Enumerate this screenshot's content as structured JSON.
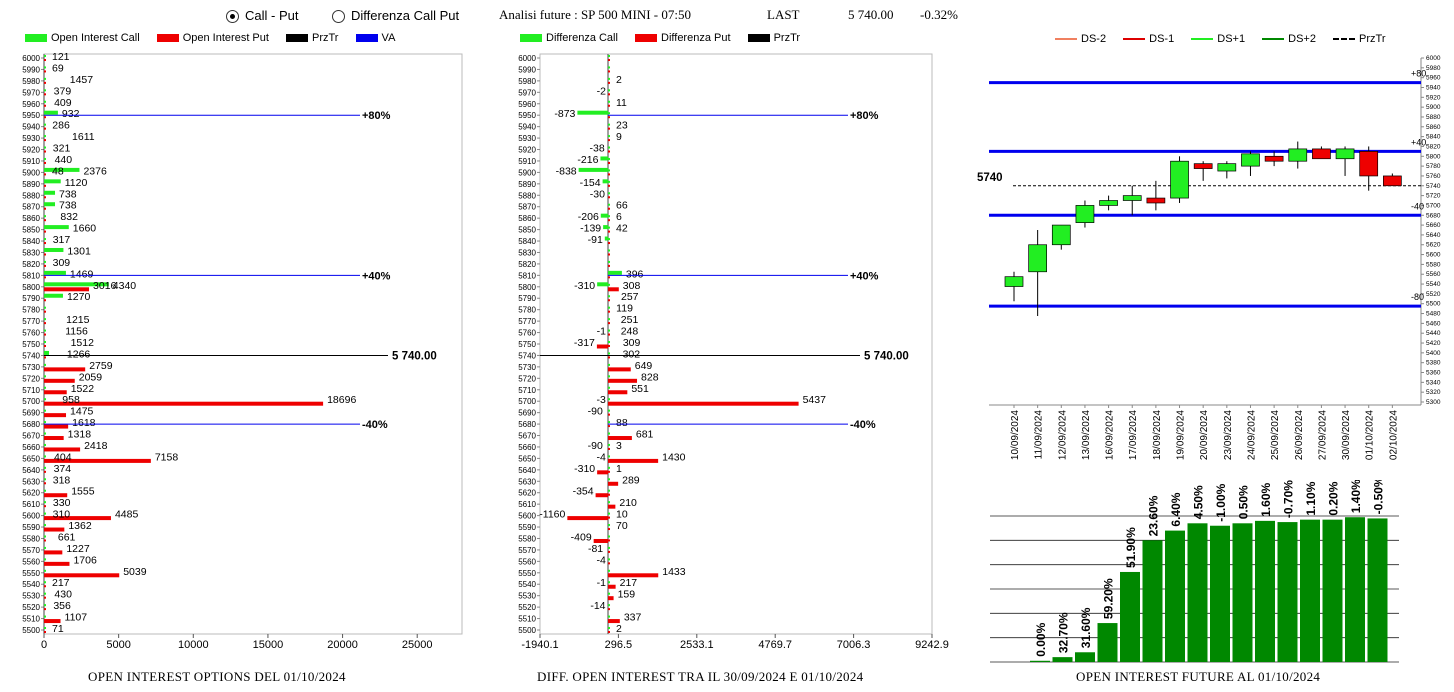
{
  "header": {
    "radio_call_put": "Call - Put",
    "radio_diff": "Differenza Call Put",
    "title": "Analisi future : SP 500 MINI - 07:50",
    "last_label": "LAST",
    "last_value": "5 740.00",
    "change": "-0.32%"
  },
  "colors": {
    "call": "#22ee22",
    "put": "#ee0000",
    "prz": "#000000",
    "va": "#0000ee",
    "bar": "#008800"
  },
  "left": {
    "legend": [
      "Open Interest Call",
      "Open Interest Put",
      "PrzTr",
      "VA"
    ],
    "footer": "OPEN INTEREST OPTIONS DEL 01/10/2024",
    "xticks": [
      "0",
      "5000",
      "10000",
      "15000",
      "20000",
      "25000"
    ],
    "marker_80": "+80%",
    "marker_40": "+40%",
    "marker_m40": "-40%",
    "price_label": "5 740.00"
  },
  "mid": {
    "legend": [
      "Differenza Call",
      "Differenza Put",
      "PrzTr"
    ],
    "footer": "DIFF. OPEN INTEREST TRA IL 30/09/2024 E 01/10/2024",
    "xticks": [
      "-1940.1",
      "296.5",
      "2533.1",
      "4769.7",
      "7006.3",
      "9242.9"
    ],
    "marker_80": "+80%",
    "marker_40": "+40%",
    "marker_m40": "-40%",
    "price_label": "5 740.00"
  },
  "right": {
    "legend": [
      "DS-2",
      "DS-1",
      "DS+1",
      "DS+2",
      "PrzTr"
    ],
    "price_label": "5740",
    "band_labels": [
      "+80",
      "+40",
      "-40",
      "-80"
    ],
    "footer": "OPEN INTEREST FUTURE AL 01/10/2024"
  },
  "chart_data": [
    {
      "type": "bar",
      "title": "OPEN INTEREST OPTIONS DEL 01/10/2024",
      "orientation": "horizontal",
      "strike_range": [
        5500,
        6000
      ],
      "strike_step": 10,
      "xlim": [
        0,
        28000
      ],
      "call_labels": [
        [
          "6000",
          "121"
        ],
        [
          "5990",
          "69"
        ],
        [
          "5980",
          "1457"
        ],
        [
          "5970",
          "379"
        ],
        [
          "5960",
          "409"
        ],
        [
          "5950",
          "932"
        ],
        [
          "5940",
          "286"
        ],
        [
          "5930",
          "1611"
        ],
        [
          "5920",
          "321"
        ],
        [
          "5910",
          "440"
        ],
        [
          "5900",
          "2376"
        ],
        [
          "5900",
          "48"
        ],
        [
          "5890",
          "1120"
        ],
        [
          "5880",
          "738"
        ],
        [
          "5870",
          "738"
        ],
        [
          "5860",
          "832"
        ],
        [
          "5850",
          "1660"
        ],
        [
          "5840",
          "317"
        ],
        [
          "5830",
          "1301"
        ],
        [
          "5820",
          "309"
        ],
        [
          "5810",
          "1469"
        ],
        [
          "5800",
          "4340"
        ],
        [
          "5800",
          "3016"
        ],
        [
          "5790",
          "1270"
        ],
        [
          "5770",
          "1215"
        ],
        [
          "5760",
          "1156"
        ],
        [
          "5750",
          "1512"
        ],
        [
          "5740",
          "1266"
        ],
        [
          "5730",
          "2759"
        ],
        [
          "5720",
          "2059"
        ],
        [
          "5710",
          "1522"
        ],
        [
          "5700",
          "958"
        ],
        [
          "5700",
          "18696"
        ],
        [
          "5690",
          "1475"
        ],
        [
          "5680",
          "1618"
        ],
        [
          "5670",
          "1318"
        ],
        [
          "5660",
          "2418"
        ],
        [
          "5650",
          "404"
        ],
        [
          "5650",
          "7158"
        ],
        [
          "5640",
          "374"
        ],
        [
          "5630",
          "318"
        ],
        [
          "5620",
          "1555"
        ],
        [
          "5610",
          "330"
        ],
        [
          "5600",
          "310"
        ],
        [
          "5600",
          "4485"
        ],
        [
          "5590",
          "1362"
        ],
        [
          "5580",
          "661"
        ],
        [
          "5570",
          "1227"
        ],
        [
          "5560",
          "1706"
        ],
        [
          "5550",
          "5039"
        ],
        [
          "5540",
          "217"
        ],
        [
          "5530",
          "430"
        ],
        [
          "5520",
          "356"
        ],
        [
          "5510",
          "1107"
        ],
        [
          "5500",
          "71"
        ]
      ],
      "put_values": {
        "5800": 3016,
        "5730": 2759,
        "5720": 2059,
        "5710": 1522,
        "5700": 18696,
        "5690": 1475,
        "5680": 1618,
        "5670": 1318,
        "5660": 2418,
        "5650": 7158,
        "5620": 1555,
        "5600": 4485,
        "5590": 1362,
        "5570": 1227,
        "5560": 1706,
        "5550": 5039,
        "5510": 1107
      },
      "call_values": {
        "5950": 932,
        "5900": 2376,
        "5890": 1120,
        "5880": 738,
        "5870": 738,
        "5850": 1660,
        "5830": 1301,
        "5810": 1469,
        "5800": 4340,
        "5790": 1270,
        "5740": 334
      },
      "price": 5740
    },
    {
      "type": "bar",
      "title": "DIFF. OPEN INTEREST TRA IL 30/09/2024 E 01/10/2024",
      "orientation": "horizontal",
      "xlim": [
        -1940.1,
        9242.9
      ],
      "labels": [
        [
          "5980",
          "2"
        ],
        [
          "5970",
          "-2"
        ],
        [
          "5960",
          "11"
        ],
        [
          "5950",
          "-873"
        ],
        [
          "5940",
          "23"
        ],
        [
          "5930",
          "9"
        ],
        [
          "5920",
          "-38"
        ],
        [
          "5910",
          "-216"
        ],
        [
          "5900",
          "-838"
        ],
        [
          "5890",
          "-154"
        ],
        [
          "5880",
          "-30"
        ],
        [
          "5870",
          "66"
        ],
        [
          "5860",
          "-206"
        ],
        [
          "5860",
          "6"
        ],
        [
          "5850",
          "-139"
        ],
        [
          "5850",
          "42"
        ],
        [
          "5840",
          "-91"
        ],
        [
          "5810",
          "396"
        ],
        [
          "5800",
          "-310"
        ],
        [
          "5800",
          "308"
        ],
        [
          "5790",
          "257"
        ],
        [
          "5780",
          "119"
        ],
        [
          "5770",
          "251"
        ],
        [
          "5760",
          "248"
        ],
        [
          "5760",
          "-1"
        ],
        [
          "5750",
          "-317"
        ],
        [
          "5750",
          "309"
        ],
        [
          "5740",
          "302"
        ],
        [
          "5730",
          "649"
        ],
        [
          "5720",
          "828"
        ],
        [
          "5710",
          "551"
        ],
        [
          "5700",
          "-3"
        ],
        [
          "5700",
          "5437"
        ],
        [
          "5690",
          "-90"
        ],
        [
          "5680",
          "88"
        ],
        [
          "5670",
          "681"
        ],
        [
          "5660",
          "-90"
        ],
        [
          "5660",
          "3"
        ],
        [
          "5650",
          "-4"
        ],
        [
          "5650",
          "1430"
        ],
        [
          "5640",
          "-310"
        ],
        [
          "5640",
          "1"
        ],
        [
          "5630",
          "289"
        ],
        [
          "5620",
          "-354"
        ],
        [
          "5610",
          "210"
        ],
        [
          "5600",
          "-1160"
        ],
        [
          "5600",
          "10"
        ],
        [
          "5590",
          "70"
        ],
        [
          "5580",
          "-409"
        ],
        [
          "5570",
          "-81"
        ],
        [
          "5560",
          "-4"
        ],
        [
          "5550",
          "1433"
        ],
        [
          "5540",
          "-1"
        ],
        [
          "5540",
          "217"
        ],
        [
          "5530",
          "159"
        ],
        [
          "5520",
          "-14"
        ],
        [
          "5510",
          "337"
        ],
        [
          "5500",
          "2"
        ]
      ],
      "call_diff": {
        "5950": -873,
        "5910": -216,
        "5900": -838,
        "5890": -154,
        "5860": -206,
        "5850": -139,
        "5840": -91,
        "5810": 396,
        "5800": -310
      },
      "put_diff": {
        "5800": 308,
        "5750": -317,
        "5730": 649,
        "5720": 828,
        "5710": 551,
        "5700": 5437,
        "5670": 681,
        "5650": 1430,
        "5640": -310,
        "5630": 289,
        "5620": -354,
        "5610": 210,
        "5600": -1160,
        "5580": -409,
        "5550": 1433,
        "5540": 217,
        "5530": 159,
        "5510": 337
      },
      "price": 5740
    },
    {
      "type": "candlestick",
      "dates": [
        "10/09/2024",
        "11/09/2024",
        "12/09/2024",
        "13/09/2024",
        "16/09/2024",
        "17/09/2024",
        "18/09/2024",
        "19/09/2024",
        "20/09/2024",
        "23/09/2024",
        "24/09/2024",
        "25/09/2024",
        "26/09/2024",
        "27/09/2024",
        "30/09/2024",
        "01/10/2024",
        "02/10/2024"
      ],
      "ohlc": [
        [
          5535,
          5565,
          5505,
          5555
        ],
        [
          5565,
          5650,
          5475,
          5620
        ],
        [
          5620,
          5660,
          5610,
          5660
        ],
        [
          5665,
          5710,
          5655,
          5700
        ],
        [
          5700,
          5720,
          5690,
          5710
        ],
        [
          5710,
          5740,
          5680,
          5720
        ],
        [
          5715,
          5750,
          5690,
          5705
        ],
        [
          5715,
          5800,
          5705,
          5790
        ],
        [
          5785,
          5790,
          5750,
          5775
        ],
        [
          5770,
          5790,
          5755,
          5785
        ],
        [
          5780,
          5810,
          5760,
          5805
        ],
        [
          5800,
          5810,
          5780,
          5790
        ],
        [
          5790,
          5830,
          5775,
          5815
        ],
        [
          5815,
          5820,
          5795,
          5795
        ],
        [
          5795,
          5820,
          5760,
          5815
        ],
        [
          5810,
          5820,
          5730,
          5760
        ],
        [
          5760,
          5765,
          5740,
          5740
        ]
      ],
      "ylim": [
        5300,
        6000
      ],
      "yticks": [
        "6000",
        "5980",
        "5960",
        "5940",
        "5920",
        "5900",
        "5880",
        "5860",
        "5840",
        "5820",
        "5800",
        "5780",
        "5760",
        "5740",
        "5720",
        "5700",
        "5680",
        "5660",
        "5640",
        "5620",
        "5600",
        "5580",
        "5560",
        "5540",
        "5520",
        "5500",
        "5480",
        "5460",
        "5440",
        "5420",
        "5400",
        "5380",
        "5360",
        "5340",
        "5320",
        "5300"
      ],
      "bands": {
        "+80": 5950,
        "+40": 5810,
        "-40": 5680,
        "-80": 5495
      },
      "price": 5740
    },
    {
      "type": "bar",
      "title": "OPEN INTEREST FUTURE AL 01/10/2024",
      "labels": [
        "0.00%",
        "32.70%",
        "31.60%",
        "59.20%",
        "51.90%",
        "23.60%",
        "6.40%",
        "4.50%",
        "-1.00%",
        "0.50%",
        "1.60%",
        "-0.70%",
        "1.10%",
        "0.20%",
        "1.40%",
        "-0.50%"
      ],
      "values": [
        0.5,
        2,
        4,
        16,
        37,
        50,
        54,
        57,
        56,
        57,
        58,
        57.5,
        58.5,
        58.5,
        59.5,
        59
      ]
    }
  ]
}
